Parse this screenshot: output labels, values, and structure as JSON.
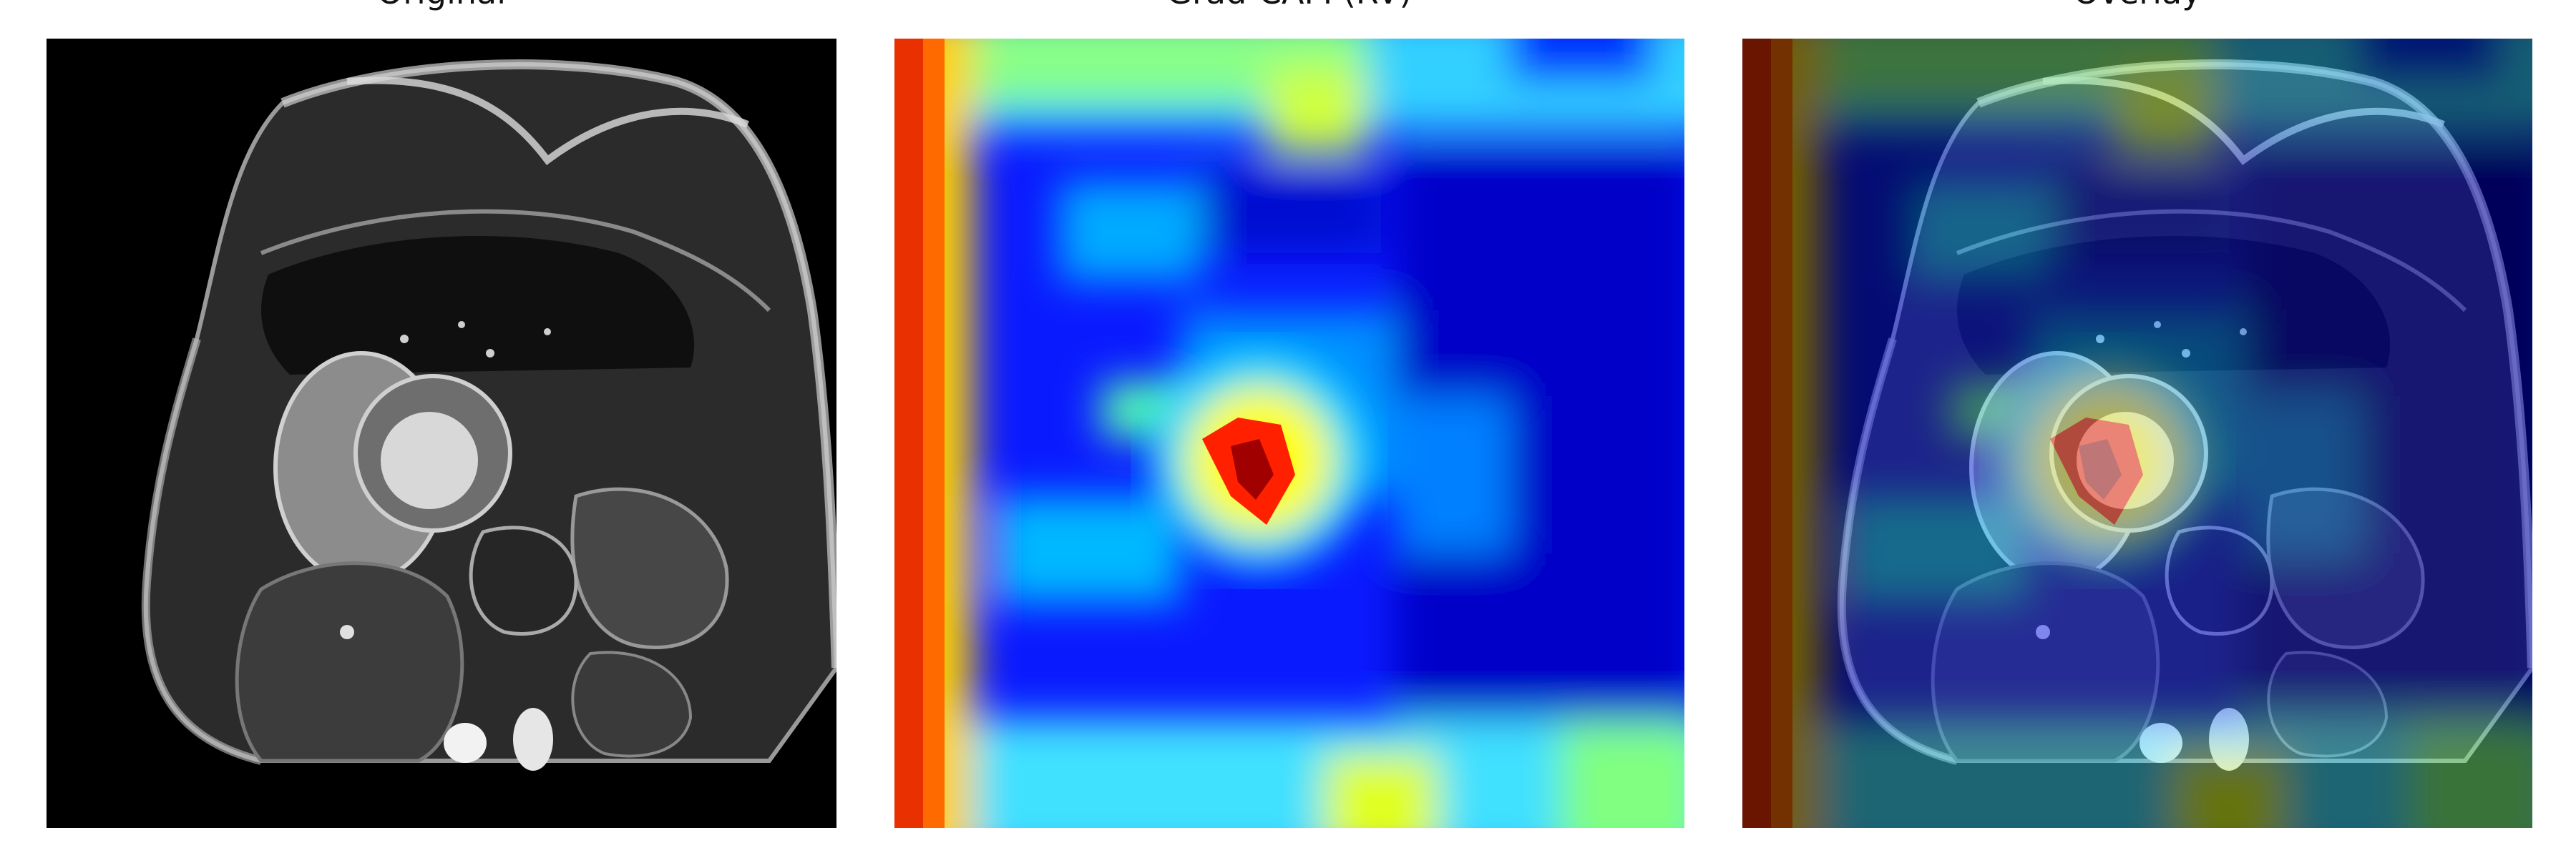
{
  "panels": [
    {
      "title": "Original"
    },
    {
      "title": "Grad-CAM (RV)"
    },
    {
      "title": "Overlay"
    }
  ],
  "colormap": "jet",
  "colors": {
    "background": "#ffffff",
    "scan_background": "#000000"
  }
}
